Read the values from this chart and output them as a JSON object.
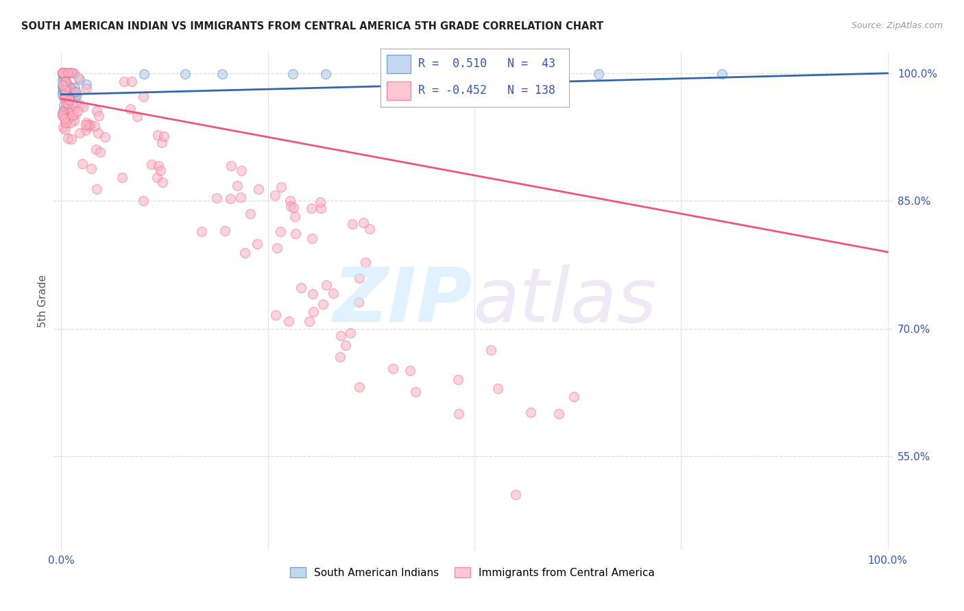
{
  "title": "SOUTH AMERICAN INDIAN VS IMMIGRANTS FROM CENTRAL AMERICA 5TH GRADE CORRELATION CHART",
  "source": "Source: ZipAtlas.com",
  "ylabel": "5th Grade",
  "ytick_labels": [
    "100.0%",
    "85.0%",
    "70.0%",
    "55.0%"
  ],
  "ytick_values": [
    1.0,
    0.85,
    0.7,
    0.55
  ],
  "legend_label1": "South American Indians",
  "legend_label2": "Immigrants from Central America",
  "R1": 0.51,
  "N1": 43,
  "R2": -0.452,
  "N2": 138,
  "blue_scatter_color": "#a8c8e8",
  "blue_edge_color": "#5588bb",
  "pink_scatter_color": "#ffb0c0",
  "pink_edge_color": "#ee6688",
  "blue_line_color": "#3366aa",
  "pink_line_color": "#ee5577",
  "watermark_zip_color": "#cce0ff",
  "watermark_atlas_color": "#ddccff",
  "background_color": "#ffffff",
  "grid_color": "#dddddd",
  "title_color": "#222222",
  "source_color": "#999999",
  "axis_label_color": "#3355bb",
  "ylabel_color": "#555555"
}
